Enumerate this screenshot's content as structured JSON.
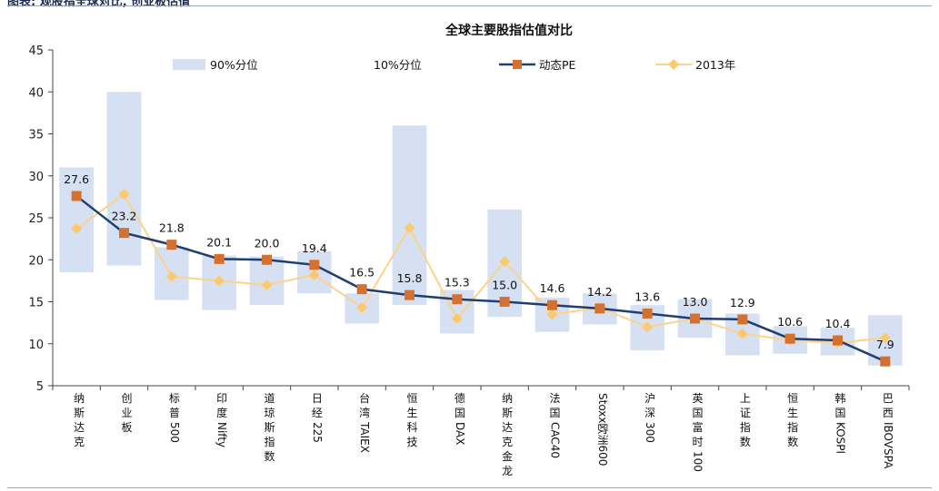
{
  "page": {
    "header_text": "图表: 观股指全球对比, 创业板估值"
  },
  "colors": {
    "band_90": "#d6e0f3",
    "band_10": "#ffffff",
    "pe_line": "#1f3e72",
    "pe_marker": "#d4712f",
    "y2013_line": "#fcd28c",
    "y2013_marker": "#fcc96e",
    "axis": "#444444"
  },
  "chart_data": {
    "type": "line",
    "title": "全球主要股指估值对比",
    "xlabel": "",
    "ylabel": "",
    "ylim": [
      5,
      45
    ],
    "yticks": [
      5,
      10,
      15,
      20,
      25,
      30,
      35,
      40,
      45
    ],
    "legend_position": "top",
    "legend": {
      "band90": "90%分位",
      "band10": "10%分位",
      "pe": "动态PE",
      "y2013": "2013年"
    },
    "categories": [
      "纳斯达克",
      "创业板",
      "标普500",
      "印度Nifty",
      "道琼斯指数",
      "日经225",
      "台湾TAIEX",
      "恒生科技",
      "德国DAX",
      "纳斯达克金龙",
      "法国CAC40",
      "Stoxx欧洲600",
      "沪深300",
      "英国富时100",
      "上证指数",
      "恒生指数",
      "韩国KOSPI",
      "巴西IBOVSPA"
    ],
    "category_label_style": [
      "v",
      "v",
      "m",
      "m",
      "v",
      "m",
      "r",
      "v",
      "r",
      "v",
      "m",
      "m",
      "m",
      "m",
      "v",
      "v",
      "m",
      "m"
    ],
    "series": [
      {
        "name": "90%分位",
        "kind": "band_top",
        "values": [
          31.0,
          40.0,
          21.5,
          20.5,
          20.4,
          21.0,
          16.0,
          36.0,
          16.4,
          26.0,
          15.5,
          16.0,
          14.6,
          15.3,
          13.6,
          12.1,
          11.9,
          13.4
        ]
      },
      {
        "name": "10%分位",
        "kind": "band_bottom",
        "values": [
          18.5,
          19.3,
          15.2,
          14.0,
          14.6,
          16.0,
          12.4,
          14.6,
          11.2,
          13.2,
          11.4,
          12.3,
          9.2,
          10.7,
          8.6,
          8.8,
          8.6,
          7.4
        ]
      },
      {
        "name": "动态PE",
        "kind": "line",
        "values": [
          27.6,
          23.2,
          21.8,
          20.1,
          20.0,
          19.4,
          16.5,
          15.8,
          15.3,
          15.0,
          14.6,
          14.2,
          13.6,
          13.0,
          12.9,
          10.6,
          10.4,
          7.9
        ]
      },
      {
        "name": "2013年",
        "kind": "line",
        "values": [
          23.7,
          27.8,
          18.0,
          17.5,
          17.0,
          18.2,
          14.3,
          23.8,
          13.0,
          19.8,
          13.5,
          14.3,
          12.0,
          13.0,
          11.2,
          10.4,
          10.1,
          10.7
        ]
      }
    ],
    "data_labels": [
      "27.6",
      "23.2",
      "21.8",
      "20.1",
      "20.0",
      "19.4",
      "16.5",
      "15.8",
      "15.3",
      "15.0",
      "14.6",
      "14.2",
      "13.6",
      "13.0",
      "12.9",
      "10.6",
      "10.4",
      "7.9"
    ]
  }
}
